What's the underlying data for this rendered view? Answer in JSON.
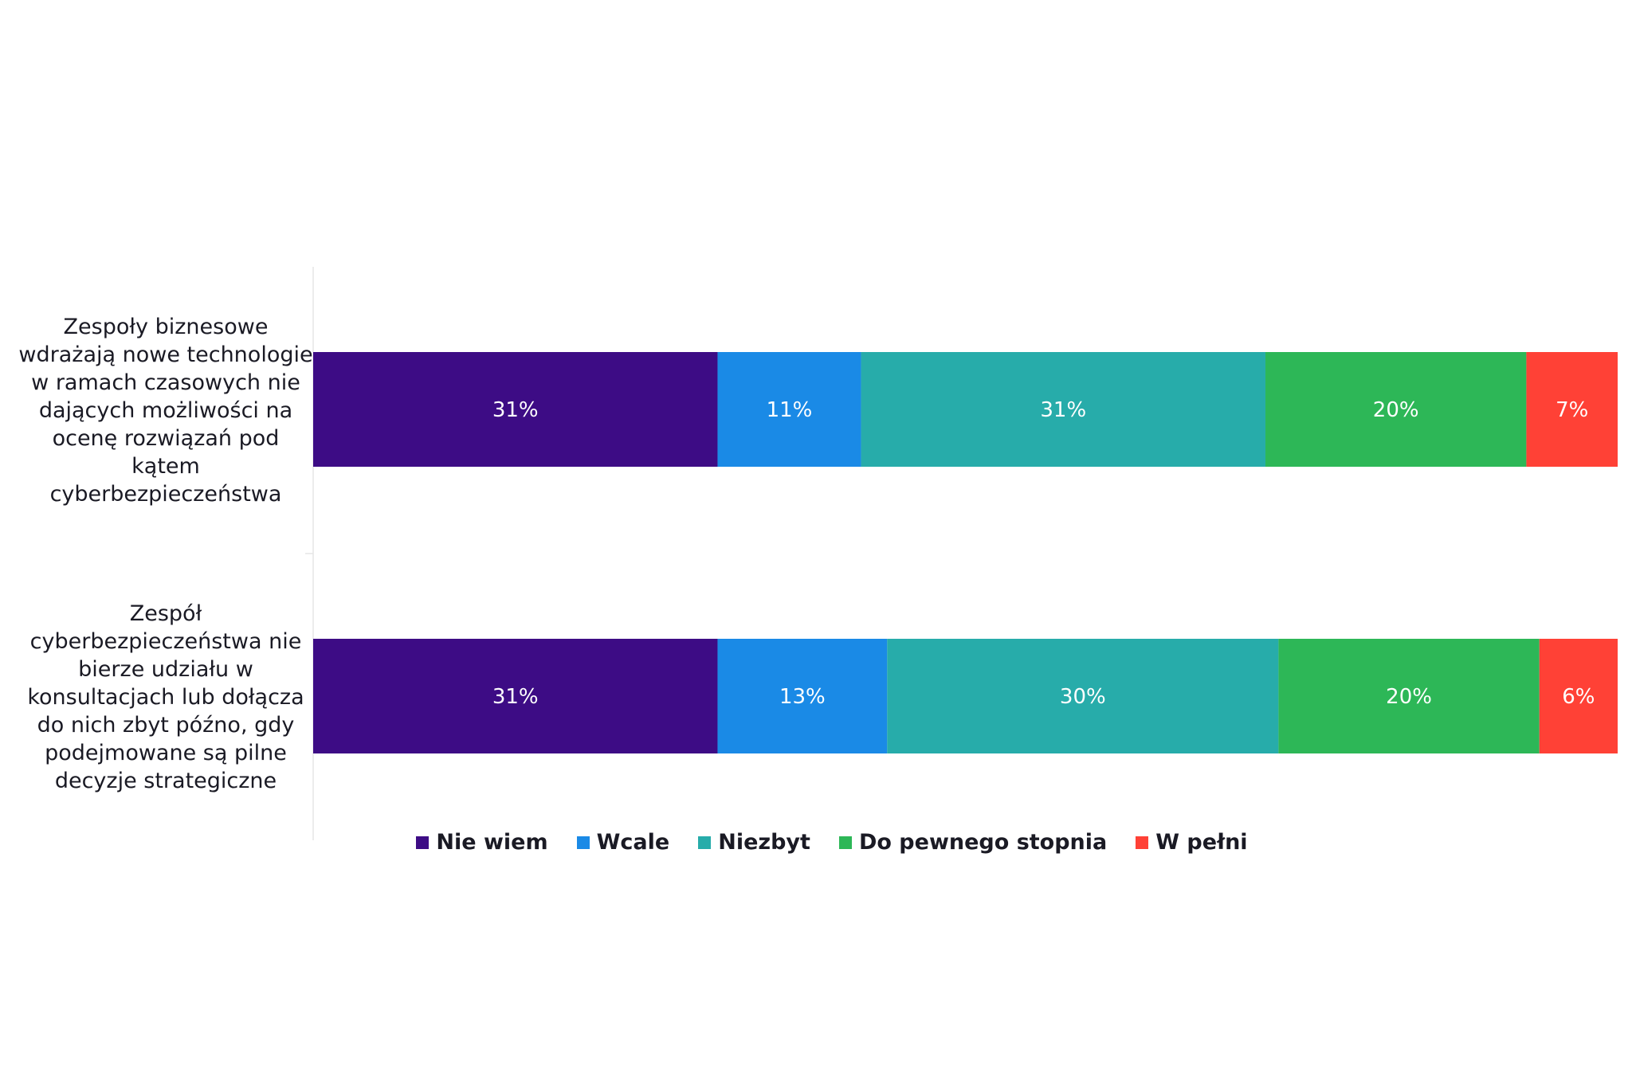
{
  "chart_data": {
    "type": "bar",
    "orientation": "horizontal",
    "stacked": true,
    "categories": [
      "Zespoły biznesowe wdrażają nowe technologie w ramach czasowych nie dających możliwości na ocenę rozwiązań pod kątem cyberbezpieczeństwa",
      "Zespół cyberbezpieczeństwa nie bierze udziału w konsultacjach lub dołącza do nich zbyt późno, gdy podejmowane są pilne decyzje strategiczne"
    ],
    "series": [
      {
        "name": "Nie wiem",
        "values": [
          31,
          31
        ],
        "labels": [
          "31%",
          "31%"
        ],
        "color": "#3d0c85"
      },
      {
        "name": "Wcale",
        "values": [
          11,
          13
        ],
        "labels": [
          "11%",
          "13%"
        ],
        "color": "#1a8ae6"
      },
      {
        "name": "Niezbyt",
        "values": [
          31,
          30
        ],
        "labels": [
          "31%",
          "30%"
        ],
        "color": "#27acaa"
      },
      {
        "name": "Do pewnego stopnia",
        "values": [
          20,
          20
        ],
        "labels": [
          "20%",
          "20%"
        ],
        "color": "#2db757"
      },
      {
        "name": "W pełni",
        "values": [
          7,
          6
        ],
        "labels": [
          "7%",
          "6%"
        ],
        "color": "#ff4136"
      }
    ],
    "xlim": [
      0,
      100
    ],
    "grid": false,
    "legend_position": "bottom-center"
  }
}
